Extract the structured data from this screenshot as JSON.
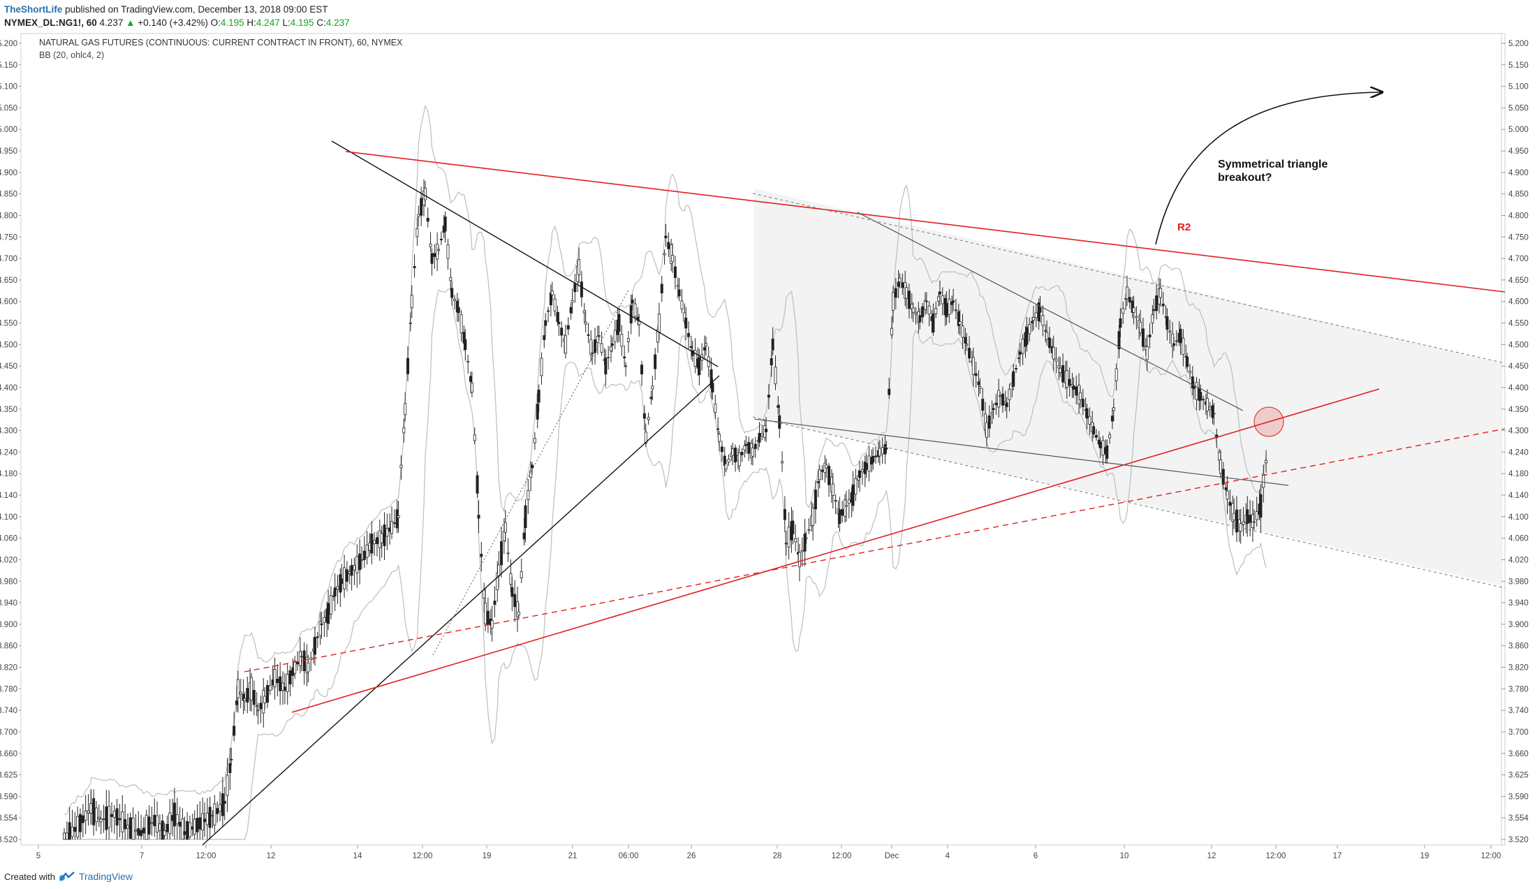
{
  "header": {
    "author": "TheShortLife",
    "published_text": "published on TradingView.com, December 13, 2018 09:00 EST",
    "symbol": "NYMEX_DL:NG1!, 60",
    "last": "4.237",
    "change_arrow": "▲",
    "change": "+0.140 (+3.42%)",
    "o_label": "O:",
    "o": "4.195",
    "h_label": "H:",
    "h": "4.247",
    "l_label": "L:",
    "l": "4.195",
    "c_label": "C:",
    "c": "4.237"
  },
  "chart_data": {
    "type": "candlestick",
    "title": "NATURAL GAS FUTURES (CONTINUOUS: CURRENT CONTRACT IN FRONT), 60, NYMEX",
    "indicator": "BB (20, ohlc4, 2)",
    "ylim": [
      3.5,
      5.22
    ],
    "y_ticks": [
      "5.200",
      "5.150",
      "5.100",
      "5.050",
      "5.000",
      "4.950",
      "4.900",
      "4.850",
      "4.800",
      "4.750",
      "4.700",
      "4.650",
      "4.600",
      "4.550",
      "4.500",
      "4.450",
      "4.400",
      "4.350",
      "4.300",
      "4.240",
      "4.180",
      "4.140",
      "4.100",
      "4.060",
      "4.020",
      "3.980",
      "3.940",
      "3.900",
      "3.860",
      "3.820",
      "3.780",
      "3.740",
      "3.700",
      "3.660",
      "3.625",
      "3.590",
      "3.554",
      "3.520"
    ],
    "x_ticks": [
      "5",
      "7",
      "12:00",
      "12",
      "14",
      "12:00",
      "19",
      "21",
      "06:00",
      "26",
      "28",
      "12:00",
      "Dec",
      "4",
      "6",
      "10",
      "12",
      "12:00",
      "17",
      "19",
      "12:00"
    ],
    "annotations": {
      "breakout_text_line1": "Symmetrical triangle",
      "breakout_text_line2": "breakout?",
      "resistance_label": "R2"
    },
    "price_path": [
      [
        0,
        3.52
      ],
      [
        8,
        3.54
      ],
      [
        16,
        3.57
      ],
      [
        22,
        3.55
      ],
      [
        30,
        3.56
      ],
      [
        38,
        3.54
      ],
      [
        46,
        3.53
      ],
      [
        54,
        3.55
      ],
      [
        60,
        3.53
      ],
      [
        66,
        3.56
      ],
      [
        72,
        3.53
      ],
      [
        78,
        3.54
      ],
      [
        84,
        3.55
      ],
      [
        90,
        3.56
      ],
      [
        96,
        3.58
      ],
      [
        100,
        3.65
      ],
      [
        104,
        3.78
      ],
      [
        108,
        3.76
      ],
      [
        112,
        3.78
      ],
      [
        116,
        3.74
      ],
      [
        120,
        3.76
      ],
      [
        126,
        3.8
      ],
      [
        132,
        3.78
      ],
      [
        138,
        3.82
      ],
      [
        142,
        3.84
      ],
      [
        146,
        3.82
      ],
      [
        150,
        3.86
      ],
      [
        154,
        3.9
      ],
      [
        158,
        3.92
      ],
      [
        162,
        3.96
      ],
      [
        166,
        3.98
      ],
      [
        172,
        4.0
      ],
      [
        178,
        4.02
      ],
      [
        184,
        4.05
      ],
      [
        190,
        4.06
      ],
      [
        196,
        4.08
      ],
      [
        200,
        4.1
      ],
      [
        204,
        4.35
      ],
      [
        208,
        4.6
      ],
      [
        212,
        4.8
      ],
      [
        216,
        4.85
      ],
      [
        220,
        4.7
      ],
      [
        224,
        4.72
      ],
      [
        228,
        4.78
      ],
      [
        232,
        4.62
      ],
      [
        236,
        4.58
      ],
      [
        240,
        4.5
      ],
      [
        244,
        4.4
      ],
      [
        248,
        4.1
      ],
      [
        252,
        3.92
      ],
      [
        256,
        3.9
      ],
      [
        260,
        4.0
      ],
      [
        264,
        4.08
      ],
      [
        268,
        3.96
      ],
      [
        272,
        3.92
      ],
      [
        276,
        4.1
      ],
      [
        280,
        4.2
      ],
      [
        284,
        4.38
      ],
      [
        288,
        4.55
      ],
      [
        292,
        4.62
      ],
      [
        296,
        4.55
      ],
      [
        300,
        4.5
      ],
      [
        304,
        4.6
      ],
      [
        308,
        4.68
      ],
      [
        312,
        4.55
      ],
      [
        316,
        4.48
      ],
      [
        320,
        4.52
      ],
      [
        324,
        4.45
      ],
      [
        328,
        4.5
      ],
      [
        332,
        4.55
      ],
      [
        336,
        4.45
      ],
      [
        340,
        4.6
      ],
      [
        344,
        4.55
      ],
      [
        348,
        4.28
      ],
      [
        352,
        4.4
      ],
      [
        356,
        4.55
      ],
      [
        360,
        4.75
      ],
      [
        364,
        4.7
      ],
      [
        368,
        4.62
      ],
      [
        372,
        4.55
      ],
      [
        376,
        4.48
      ],
      [
        380,
        4.45
      ],
      [
        384,
        4.5
      ],
      [
        388,
        4.4
      ],
      [
        392,
        4.28
      ],
      [
        396,
        4.2
      ],
      [
        400,
        4.24
      ],
      [
        404,
        4.22
      ],
      [
        408,
        4.26
      ],
      [
        412,
        4.24
      ],
      [
        416,
        4.28
      ],
      [
        420,
        4.3
      ],
      [
        424,
        4.5
      ],
      [
        428,
        4.32
      ],
      [
        432,
        4.05
      ],
      [
        436,
        4.08
      ],
      [
        440,
        4.02
      ],
      [
        444,
        4.06
      ],
      [
        448,
        4.1
      ],
      [
        452,
        4.18
      ],
      [
        456,
        4.2
      ],
      [
        460,
        4.15
      ],
      [
        464,
        4.1
      ],
      [
        468,
        4.12
      ],
      [
        472,
        4.14
      ],
      [
        476,
        4.18
      ],
      [
        480,
        4.2
      ],
      [
        484,
        4.22
      ],
      [
        488,
        4.24
      ],
      [
        492,
        4.25
      ],
      [
        496,
        4.6
      ],
      [
        500,
        4.65
      ],
      [
        504,
        4.62
      ],
      [
        508,
        4.58
      ],
      [
        512,
        4.56
      ],
      [
        516,
        4.6
      ],
      [
        520,
        4.55
      ],
      [
        524,
        4.62
      ],
      [
        528,
        4.58
      ],
      [
        532,
        4.6
      ],
      [
        536,
        4.55
      ],
      [
        540,
        4.5
      ],
      [
        544,
        4.45
      ],
      [
        548,
        4.4
      ],
      [
        552,
        4.3
      ],
      [
        556,
        4.35
      ],
      [
        560,
        4.38
      ],
      [
        564,
        4.36
      ],
      [
        568,
        4.42
      ],
      [
        572,
        4.48
      ],
      [
        576,
        4.52
      ],
      [
        580,
        4.56
      ],
      [
        584,
        4.58
      ],
      [
        588,
        4.52
      ],
      [
        592,
        4.48
      ],
      [
        596,
        4.44
      ],
      [
        600,
        4.42
      ],
      [
        604,
        4.4
      ],
      [
        608,
        4.38
      ],
      [
        612,
        4.34
      ],
      [
        616,
        4.3
      ],
      [
        620,
        4.26
      ],
      [
        624,
        4.24
      ],
      [
        628,
        4.35
      ],
      [
        632,
        4.55
      ],
      [
        636,
        4.62
      ],
      [
        640,
        4.58
      ],
      [
        644,
        4.54
      ],
      [
        648,
        4.48
      ],
      [
        652,
        4.58
      ],
      [
        656,
        4.62
      ],
      [
        660,
        4.55
      ],
      [
        664,
        4.5
      ],
      [
        668,
        4.52
      ],
      [
        672,
        4.46
      ],
      [
        676,
        4.4
      ],
      [
        680,
        4.38
      ],
      [
        684,
        4.36
      ],
      [
        688,
        4.34
      ],
      [
        692,
        4.2
      ],
      [
        696,
        4.14
      ],
      [
        700,
        4.1
      ],
      [
        704,
        4.08
      ],
      [
        708,
        4.1
      ],
      [
        712,
        4.09
      ],
      [
        716,
        4.12
      ],
      [
        720,
        4.237
      ]
    ]
  }
}
